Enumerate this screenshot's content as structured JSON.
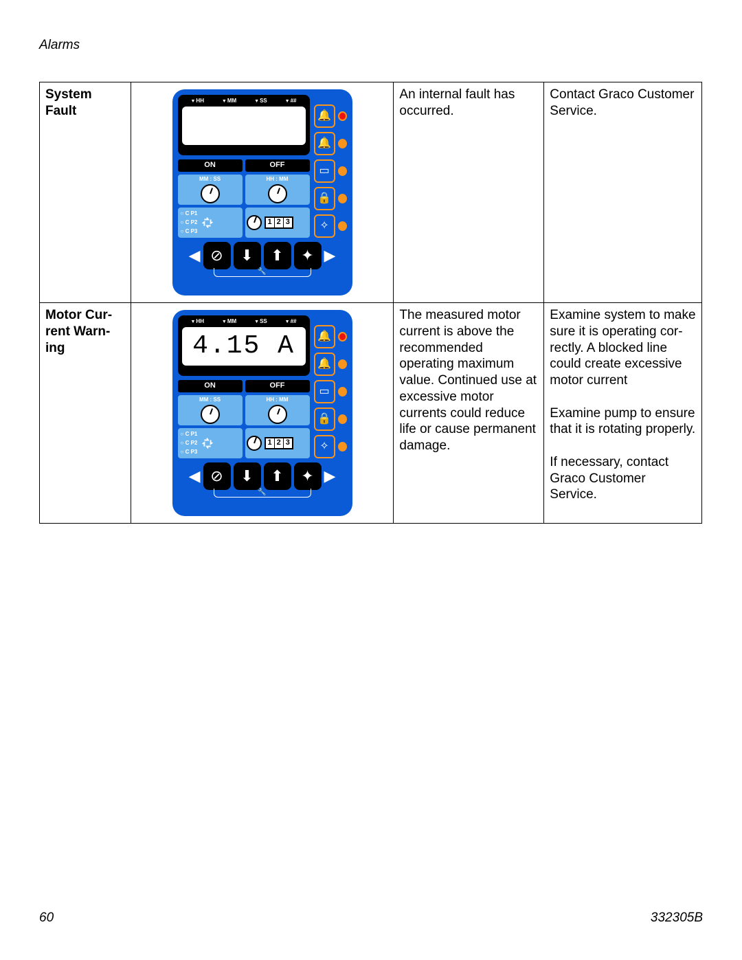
{
  "header": {
    "section": "Alarms",
    "page_number": "60",
    "doc_number": "332305B"
  },
  "panel_labels": {
    "lcd_top": [
      "HH",
      "MM",
      "SS",
      "##"
    ],
    "on": "ON",
    "off": "OFF",
    "mmss": "MM : SS",
    "hhmm": "HH : MM",
    "cp": [
      "C P1",
      "C P2",
      "C P3"
    ],
    "digits": [
      "1",
      "2",
      "3"
    ]
  },
  "rows": [
    {
      "name": "System Fault",
      "lcd": "",
      "description": "An internal fault has occurred.",
      "action": "Contact Graco Customer Service."
    },
    {
      "name": "Motor Cur­rent Warn­ing",
      "lcd": "4.15 A",
      "description": "The measured motor cur­rent is above the recom­mended operating maximum value. Continued use at excessive motor currents could reduce life or cause permanent dam­age.",
      "action": "Examine system to make sure it is operating cor­rectly. A blocked line could create excessive motor current\n\nExamine pump to ensure that it is rotating properly.\n\nIf necessary, contact Graco Customer Service."
    }
  ],
  "colors": {
    "panel_bg": "#0b5bd7",
    "btn_border": "#f7941e",
    "led_red": "#e11",
    "cell_bg": "#6cb4ee"
  }
}
